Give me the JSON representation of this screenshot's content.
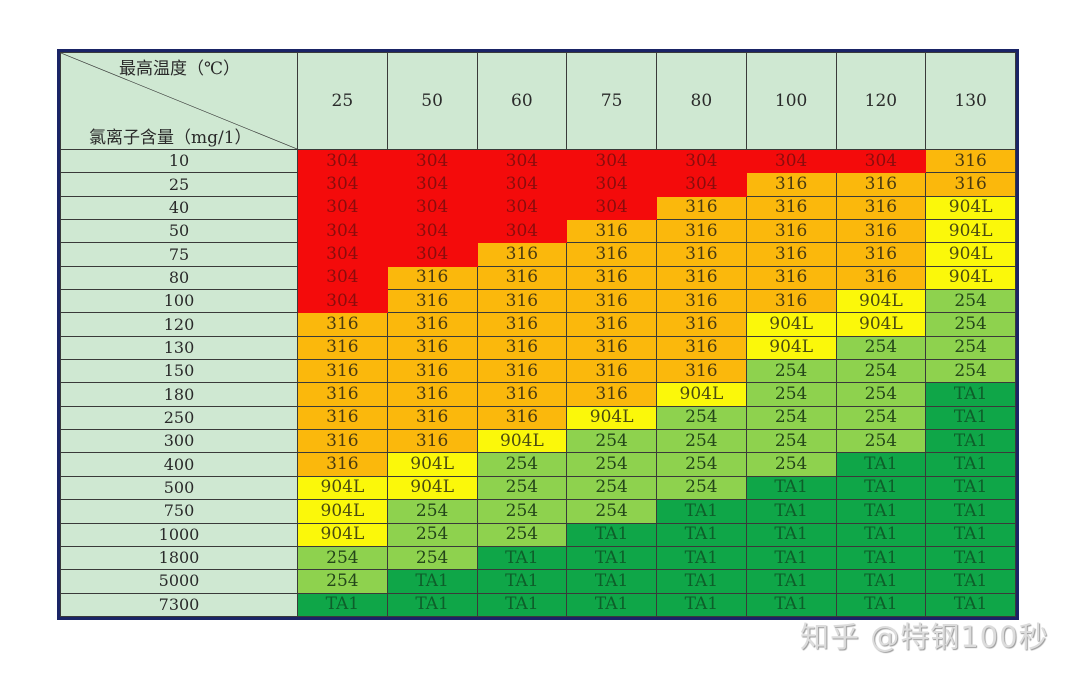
{
  "table": {
    "corner_top_label": "最高温度（℃）",
    "corner_bottom_label": "氯离子含量（mg/1）",
    "columns": [
      "25",
      "50",
      "60",
      "75",
      "80",
      "100",
      "120",
      "130"
    ],
    "rows": [
      {
        "label": "10",
        "cells": [
          "304",
          "304",
          "304",
          "304",
          "304",
          "304",
          "304",
          "316"
        ]
      },
      {
        "label": "25",
        "cells": [
          "304",
          "304",
          "304",
          "304",
          "304",
          "316",
          "316",
          "316"
        ]
      },
      {
        "label": "40",
        "cells": [
          "304",
          "304",
          "304",
          "304",
          "316",
          "316",
          "316",
          "904L"
        ]
      },
      {
        "label": "50",
        "cells": [
          "304",
          "304",
          "304",
          "316",
          "316",
          "316",
          "316",
          "904L"
        ]
      },
      {
        "label": "75",
        "cells": [
          "304",
          "304",
          "316",
          "316",
          "316",
          "316",
          "316",
          "904L"
        ]
      },
      {
        "label": "80",
        "cells": [
          "304",
          "316",
          "316",
          "316",
          "316",
          "316",
          "316",
          "904L"
        ]
      },
      {
        "label": "100",
        "cells": [
          "304",
          "316",
          "316",
          "316",
          "316",
          "316",
          "904L",
          "254"
        ]
      },
      {
        "label": "120",
        "cells": [
          "316",
          "316",
          "316",
          "316",
          "316",
          "904L",
          "904L",
          "254"
        ]
      },
      {
        "label": "130",
        "cells": [
          "316",
          "316",
          "316",
          "316",
          "316",
          "904L",
          "254",
          "254"
        ]
      },
      {
        "label": "150",
        "cells": [
          "316",
          "316",
          "316",
          "316",
          "316",
          "254",
          "254",
          "254"
        ]
      },
      {
        "label": "180",
        "cells": [
          "316",
          "316",
          "316",
          "316",
          "904L",
          "254",
          "254",
          "TA1"
        ]
      },
      {
        "label": "250",
        "cells": [
          "316",
          "316",
          "316",
          "904L",
          "254",
          "254",
          "254",
          "TA1"
        ]
      },
      {
        "label": "300",
        "cells": [
          "316",
          "316",
          "904L",
          "254",
          "254",
          "254",
          "254",
          "TA1"
        ]
      },
      {
        "label": "400",
        "cells": [
          "316",
          "904L",
          "254",
          "254",
          "254",
          "254",
          "TA1",
          "TA1"
        ]
      },
      {
        "label": "500",
        "cells": [
          "904L",
          "904L",
          "254",
          "254",
          "254",
          "TA1",
          "TA1",
          "TA1"
        ]
      },
      {
        "label": "750",
        "cells": [
          "904L",
          "254",
          "254",
          "254",
          "TA1",
          "TA1",
          "TA1",
          "TA1"
        ]
      },
      {
        "label": "1000",
        "cells": [
          "904L",
          "254",
          "254",
          "TA1",
          "TA1",
          "TA1",
          "TA1",
          "TA1"
        ]
      },
      {
        "label": "1800",
        "cells": [
          "254",
          "254",
          "TA1",
          "TA1",
          "TA1",
          "TA1",
          "TA1",
          "TA1"
        ]
      },
      {
        "label": "5000",
        "cells": [
          "254",
          "TA1",
          "TA1",
          "TA1",
          "TA1",
          "TA1",
          "TA1",
          "TA1"
        ]
      },
      {
        "label": "7300",
        "cells": [
          "TA1",
          "TA1",
          "TA1",
          "TA1",
          "TA1",
          "TA1",
          "TA1",
          "TA1"
        ]
      }
    ]
  },
  "colors": {
    "304": "#f40b0b",
    "316": "#fbb80c",
    "904L": "#fbf80a",
    "254": "#8ed24e",
    "TA1": "#0fa648",
    "header_bg": "#cfe8d2",
    "border": "#1a2466"
  },
  "watermark": "知乎 @特钢100秒"
}
